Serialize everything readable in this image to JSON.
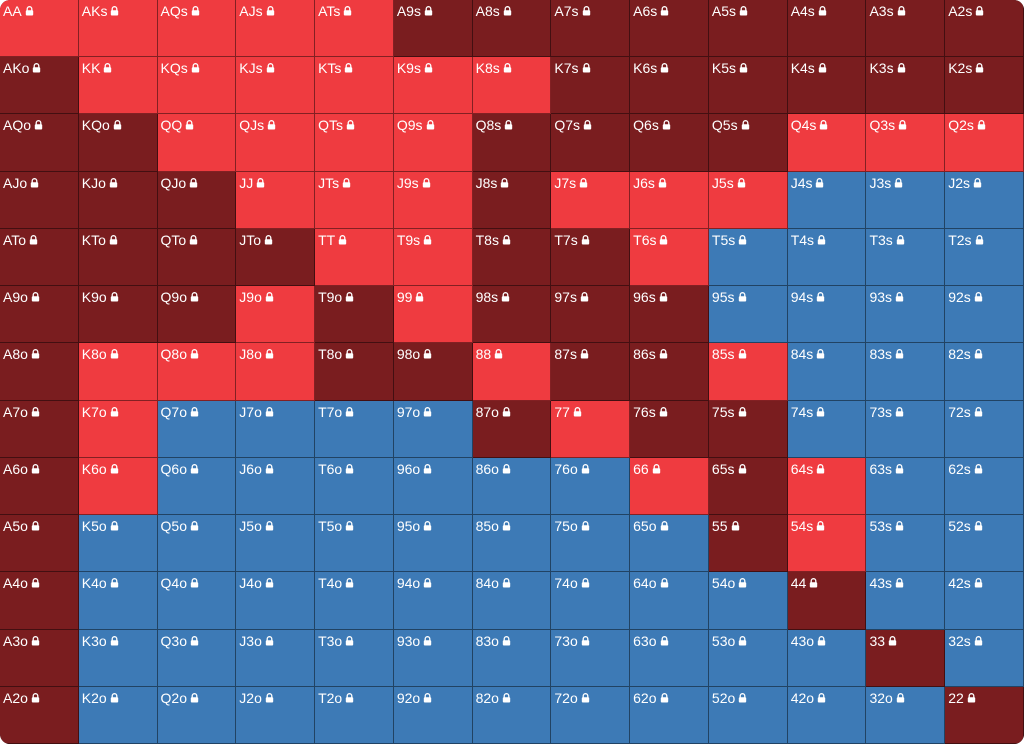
{
  "colors": {
    "R": "#ef3b40",
    "D": "#7a1d1f",
    "B": "#3d7ab6"
  },
  "lock_icon": "lock-icon",
  "hands": [
    [
      "AA",
      "AKs",
      "AQs",
      "AJs",
      "ATs",
      "A9s",
      "A8s",
      "A7s",
      "A6s",
      "A5s",
      "A4s",
      "A3s",
      "A2s"
    ],
    [
      "AKo",
      "KK",
      "KQs",
      "KJs",
      "KTs",
      "K9s",
      "K8s",
      "K7s",
      "K6s",
      "K5s",
      "K4s",
      "K3s",
      "K2s"
    ],
    [
      "AQo",
      "KQo",
      "QQ",
      "QJs",
      "QTs",
      "Q9s",
      "Q8s",
      "Q7s",
      "Q6s",
      "Q5s",
      "Q4s",
      "Q3s",
      "Q2s"
    ],
    [
      "AJo",
      "KJo",
      "QJo",
      "JJ",
      "JTs",
      "J9s",
      "J8s",
      "J7s",
      "J6s",
      "J5s",
      "J4s",
      "J3s",
      "J2s"
    ],
    [
      "ATo",
      "KTo",
      "QTo",
      "JTo",
      "TT",
      "T9s",
      "T8s",
      "T7s",
      "T6s",
      "T5s",
      "T4s",
      "T3s",
      "T2s"
    ],
    [
      "A9o",
      "K9o",
      "Q9o",
      "J9o",
      "T9o",
      "99",
      "98s",
      "97s",
      "96s",
      "95s",
      "94s",
      "93s",
      "92s"
    ],
    [
      "A8o",
      "K8o",
      "Q8o",
      "J8o",
      "T8o",
      "98o",
      "88",
      "87s",
      "86s",
      "85s",
      "84s",
      "83s",
      "82s"
    ],
    [
      "A7o",
      "K7o",
      "Q7o",
      "J7o",
      "T7o",
      "97o",
      "87o",
      "77",
      "76s",
      "75s",
      "74s",
      "73s",
      "72s"
    ],
    [
      "A6o",
      "K6o",
      "Q6o",
      "J6o",
      "T6o",
      "96o",
      "86o",
      "76o",
      "66",
      "65s",
      "64s",
      "63s",
      "62s"
    ],
    [
      "A5o",
      "K5o",
      "Q5o",
      "J5o",
      "T5o",
      "95o",
      "85o",
      "75o",
      "65o",
      "55",
      "54s",
      "53s",
      "52s"
    ],
    [
      "A4o",
      "K4o",
      "Q4o",
      "J4o",
      "T4o",
      "94o",
      "84o",
      "74o",
      "64o",
      "54o",
      "44",
      "43s",
      "42s"
    ],
    [
      "A3o",
      "K3o",
      "Q3o",
      "J3o",
      "T3o",
      "93o",
      "83o",
      "73o",
      "63o",
      "53o",
      "43o",
      "33",
      "32s"
    ],
    [
      "A2o",
      "K2o",
      "Q2o",
      "J2o",
      "T2o",
      "92o",
      "82o",
      "72o",
      "62o",
      "52o",
      "42o",
      "32o",
      "22"
    ]
  ],
  "actions": [
    "RRRRRDDDDDDDD",
    "DRRRRRRDDDDDD",
    "DDRRRRDDDDRRR",
    "DDDRRRDRRRBBB",
    "DDDDRRDDRBBBB",
    "DDDRDRDDDBBBB",
    "DRRRDDRDDRBBB",
    "DRBBBBDRDDBBB",
    "DRBBBBBBRDRBB",
    "DBBBBBBBBDRBB",
    "DBBBBBBBBBDBB",
    "DBBBBBBBBBBDB",
    "DBBBBBBBBBBBD"
  ]
}
